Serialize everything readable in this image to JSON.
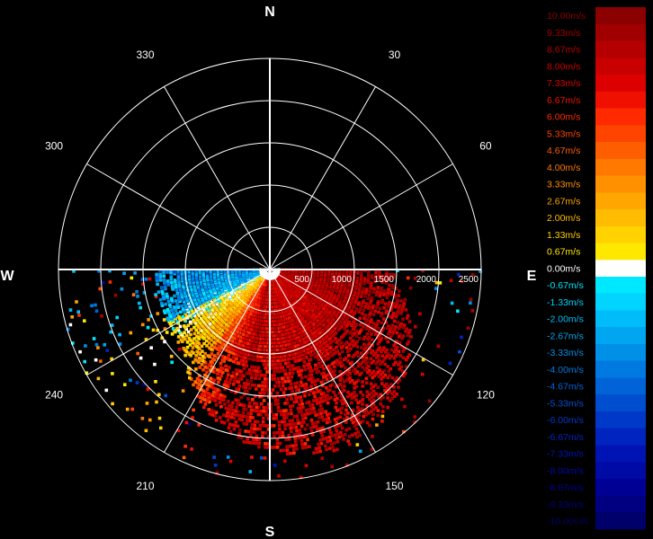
{
  "compass": {
    "north": "N",
    "east": "E",
    "south": "S",
    "west": "W"
  },
  "azimuth_labels": [
    "30",
    "60",
    "120",
    "150",
    "210",
    "240",
    "300",
    "330"
  ],
  "azimuth_degrees": [
    30,
    60,
    120,
    150,
    210,
    240,
    300,
    330
  ],
  "range_labels": [
    "500",
    "1000",
    "1500",
    "2000",
    "2500"
  ],
  "range_values": [
    500,
    1000,
    1500,
    2000,
    2500
  ],
  "max_range": 2500,
  "legend": {
    "entries": [
      {
        "label": "10.00m/s",
        "value": 10.0,
        "color": "#8b0000"
      },
      {
        "label": "9.33m/s",
        "value": 9.33,
        "color": "#a00000"
      },
      {
        "label": "8.67m/s",
        "value": 8.67,
        "color": "#b40000"
      },
      {
        "label": "8.00m/s",
        "value": 8.0,
        "color": "#c80000"
      },
      {
        "label": "7.33m/s",
        "value": 7.33,
        "color": "#dc0000"
      },
      {
        "label": "6.67m/s",
        "value": 6.67,
        "color": "#f01000"
      },
      {
        "label": "6.00m/s",
        "value": 6.0,
        "color": "#ff2a00"
      },
      {
        "label": "5.33m/s",
        "value": 5.33,
        "color": "#ff4400"
      },
      {
        "label": "4.67m/s",
        "value": 4.67,
        "color": "#ff5e00"
      },
      {
        "label": "4.00m/s",
        "value": 4.0,
        "color": "#ff7800"
      },
      {
        "label": "3.33m/s",
        "value": 3.33,
        "color": "#ff9000"
      },
      {
        "label": "2.67m/s",
        "value": 2.67,
        "color": "#ffa600"
      },
      {
        "label": "2.00m/s",
        "value": 2.0,
        "color": "#ffbc00"
      },
      {
        "label": "1.33m/s",
        "value": 1.33,
        "color": "#ffd200"
      },
      {
        "label": "0.67m/s",
        "value": 0.67,
        "color": "#ffe800"
      },
      {
        "label": "0.00m/s",
        "value": 0.0,
        "color": "#ffffff"
      },
      {
        "label": "-0.67m/s",
        "value": -0.67,
        "color": "#00e8ff"
      },
      {
        "label": "-1.33m/s",
        "value": -1.33,
        "color": "#00d4ff"
      },
      {
        "label": "-2.00m/s",
        "value": -2.0,
        "color": "#00bcf8"
      },
      {
        "label": "-2.67m/s",
        "value": -2.67,
        "color": "#00a6f0"
      },
      {
        "label": "-3.33m/s",
        "value": -3.33,
        "color": "#0090e8"
      },
      {
        "label": "-4.00m/s",
        "value": -4.0,
        "color": "#007ae0"
      },
      {
        "label": "-4.67m/s",
        "value": -4.67,
        "color": "#0064d8"
      },
      {
        "label": "-5.33m/s",
        "value": -5.33,
        "color": "#004ed0"
      },
      {
        "label": "-6.00m/s",
        "value": -6.0,
        "color": "#0038c8"
      },
      {
        "label": "-6.67m/s",
        "value": -6.67,
        "color": "#0024c0"
      },
      {
        "label": "-7.33m/s",
        "value": -7.33,
        "color": "#0014b4"
      },
      {
        "label": "-8.00m/s",
        "value": -8.0,
        "color": "#000aa4"
      },
      {
        "label": "-8.67m/s",
        "value": -8.67,
        "color": "#000094"
      },
      {
        "label": "-9.33m/s",
        "value": -9.33,
        "color": "#000080"
      },
      {
        "label": "-10.00m/s",
        "value": -10.0,
        "color": "#00006a"
      }
    ]
  },
  "colors": {
    "background": "#000000",
    "grid": "#ffffff",
    "axis_text": "#ffffff"
  }
}
